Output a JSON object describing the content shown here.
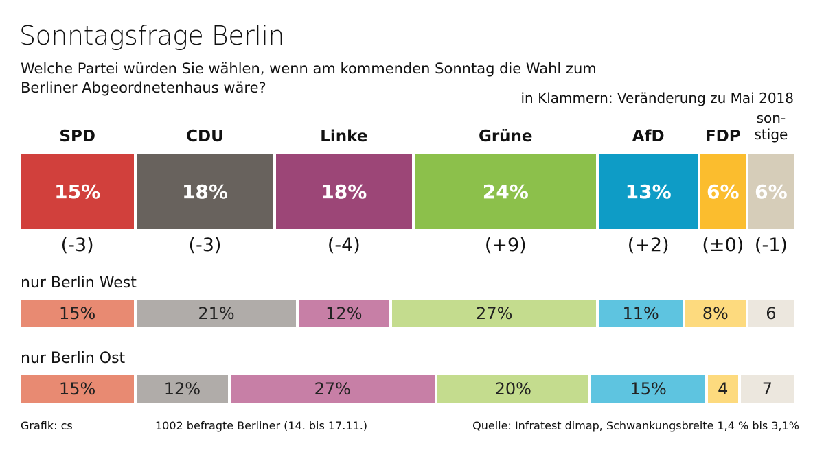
{
  "chart_data": {
    "type": "bar",
    "orientation": "horizontal-stacked",
    "title": "Sonntagsfrage Berlin",
    "subtitle": "Welche Partei würden Sie wählen, wenn am kommenden Sonntag die Wahl zum Berliner Abgeordnetenhaus wäre?",
    "note": "in Klammern: Veränderung zu Mai 2018",
    "categories": [
      "SPD",
      "CDU",
      "Linke",
      "Grüne",
      "AfD",
      "FDP",
      "son-\nstige"
    ],
    "colors": [
      "#d1403c",
      "#68625d",
      "#9c4677",
      "#8cc04b",
      "#0e9cc6",
      "#fbbd2e",
      "#d6cdb9"
    ],
    "light_colors": [
      "#e88a72",
      "#b0aca9",
      "#c77fa6",
      "#c4dc8e",
      "#5ec4e0",
      "#fdda7e",
      "#ece7de"
    ],
    "series": [
      {
        "name": "",
        "values": [
          15,
          18,
          18,
          24,
          13,
          6,
          6
        ],
        "labels": [
          "15%",
          "18%",
          "18%",
          "24%",
          "13%",
          "6%",
          "6%"
        ],
        "changes": [
          "(-3)",
          "(-3)",
          "(-4)",
          "(+9)",
          "(+2)",
          "(±0)",
          "(-1)"
        ]
      },
      {
        "name": "nur Berlin West",
        "values": [
          15,
          21,
          12,
          27,
          11,
          8,
          6
        ],
        "labels": [
          "15%",
          "21%",
          "12%",
          "27%",
          "11%",
          "8%",
          "6"
        ]
      },
      {
        "name": "nur Berlin Ost",
        "values": [
          15,
          12,
          27,
          20,
          15,
          4,
          7
        ],
        "labels": [
          "15%",
          "12%",
          "27%",
          "20%",
          "15%",
          "4",
          "7"
        ]
      }
    ],
    "unit": "%"
  },
  "footer": {
    "credit": "Grafik: cs",
    "sample": "1002 befragte Berliner (14. bis 17.11.)",
    "source": "Quelle: Infratest dimap, Schwankungsbreite 1,4 % bis 3,1%"
  }
}
